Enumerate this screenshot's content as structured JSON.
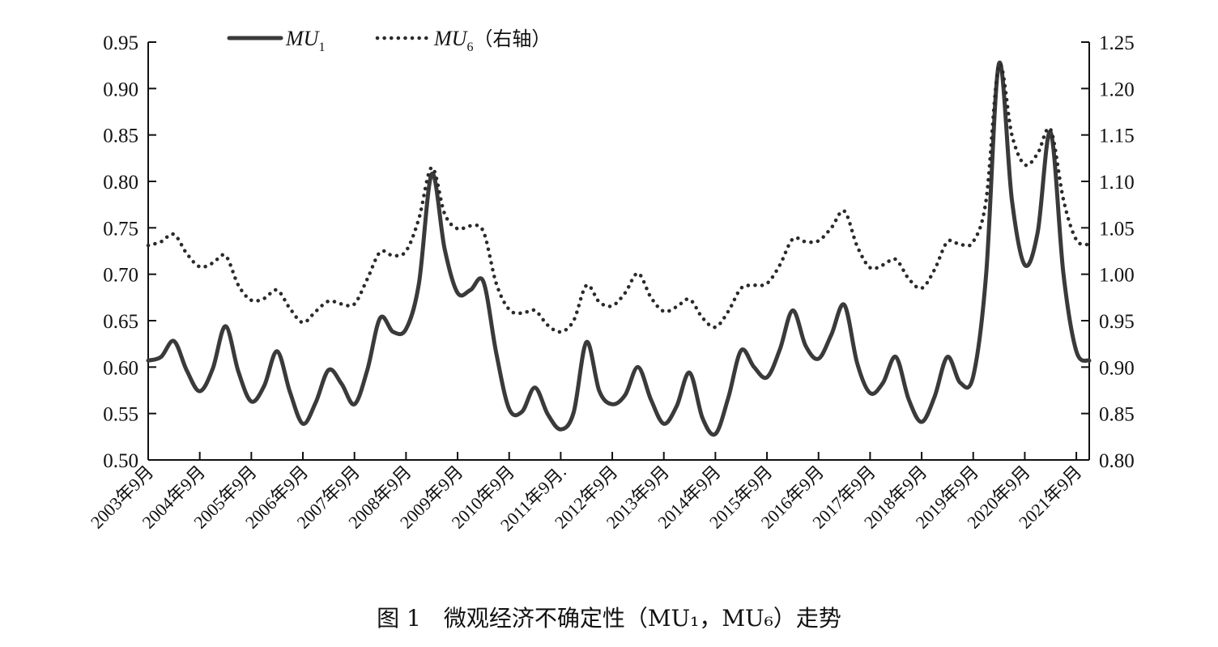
{
  "caption": "图 1　微观经济不确定性（MU₁，MU₆）走势",
  "chart_data": {
    "type": "line",
    "title": "",
    "xlabel": "",
    "ylabel": "",
    "grid": false,
    "legend_position": "top-left",
    "x_axis": {
      "type": "date",
      "range": [
        "2003-09",
        "2021-12"
      ],
      "tick_labels": [
        "2003年9月",
        "2004年9月",
        "2005年9月",
        "2006年9月",
        "2007年9月",
        "2008年9月",
        "2009年9月",
        "2010年9月",
        "2011年9月.",
        "2012年9月",
        "2013年9月",
        "2014年9月",
        "2015年9月",
        "2016年9月",
        "2017年9月",
        "2018年9月",
        "2019年9月",
        "2020年9月",
        "2021年9月"
      ]
    },
    "y_left": {
      "range": [
        0.5,
        0.95
      ],
      "ticks": [
        "0.50",
        "0.55",
        "0.60",
        "0.65",
        "0.70",
        "0.75",
        "0.80",
        "0.85",
        "0.90",
        "0.95"
      ]
    },
    "y_right": {
      "range": [
        0.8,
        1.25
      ],
      "ticks": [
        "0.80",
        "0.85",
        "0.90",
        "0.95",
        "1.00",
        "1.05",
        "1.10",
        "1.15",
        "1.20",
        "1.25"
      ]
    },
    "series": [
      {
        "name": "MU1",
        "legend_main": "MU",
        "legend_sub": "1",
        "legend_suffix": "",
        "axis": "left",
        "style": "solid",
        "color": "#3a3a3a",
        "points": [
          [
            "2003-09",
            0.607
          ],
          [
            "2003-12",
            0.611
          ],
          [
            "2004-03",
            0.628
          ],
          [
            "2004-06",
            0.596
          ],
          [
            "2004-09",
            0.574
          ],
          [
            "2004-12",
            0.598
          ],
          [
            "2005-03",
            0.644
          ],
          [
            "2005-06",
            0.595
          ],
          [
            "2005-09",
            0.563
          ],
          [
            "2005-12",
            0.58
          ],
          [
            "2006-03",
            0.617
          ],
          [
            "2006-06",
            0.573
          ],
          [
            "2006-09",
            0.539
          ],
          [
            "2006-12",
            0.562
          ],
          [
            "2007-03",
            0.597
          ],
          [
            "2007-06",
            0.582
          ],
          [
            "2007-09",
            0.56
          ],
          [
            "2007-12",
            0.597
          ],
          [
            "2008-03",
            0.653
          ],
          [
            "2008-06",
            0.638
          ],
          [
            "2008-09",
            0.641
          ],
          [
            "2008-12",
            0.69
          ],
          [
            "2009-03",
            0.808
          ],
          [
            "2009-06",
            0.727
          ],
          [
            "2009-09",
            0.68
          ],
          [
            "2009-12",
            0.683
          ],
          [
            "2010-03",
            0.692
          ],
          [
            "2010-06",
            0.615
          ],
          [
            "2010-09",
            0.555
          ],
          [
            "2010-12",
            0.552
          ],
          [
            "2011-03",
            0.578
          ],
          [
            "2011-06",
            0.549
          ],
          [
            "2011-09",
            0.533
          ],
          [
            "2011-12",
            0.551
          ],
          [
            "2012-03",
            0.627
          ],
          [
            "2012-06",
            0.574
          ],
          [
            "2012-09",
            0.56
          ],
          [
            "2012-12",
            0.57
          ],
          [
            "2013-03",
            0.6
          ],
          [
            "2013-06",
            0.565
          ],
          [
            "2013-09",
            0.539
          ],
          [
            "2013-12",
            0.558
          ],
          [
            "2014-03",
            0.594
          ],
          [
            "2014-06",
            0.545
          ],
          [
            "2014-09",
            0.528
          ],
          [
            "2014-12",
            0.567
          ],
          [
            "2015-03",
            0.618
          ],
          [
            "2015-06",
            0.6
          ],
          [
            "2015-09",
            0.589
          ],
          [
            "2015-12",
            0.619
          ],
          [
            "2016-03",
            0.661
          ],
          [
            "2016-06",
            0.623
          ],
          [
            "2016-09",
            0.609
          ],
          [
            "2016-12",
            0.635
          ],
          [
            "2017-03",
            0.667
          ],
          [
            "2017-06",
            0.604
          ],
          [
            "2017-09",
            0.572
          ],
          [
            "2017-12",
            0.583
          ],
          [
            "2018-03",
            0.611
          ],
          [
            "2018-06",
            0.565
          ],
          [
            "2018-09",
            0.541
          ],
          [
            "2018-12",
            0.568
          ],
          [
            "2019-03",
            0.611
          ],
          [
            "2019-06",
            0.583
          ],
          [
            "2019-09",
            0.59
          ],
          [
            "2019-12",
            0.7
          ],
          [
            "2020-03",
            0.927
          ],
          [
            "2020-06",
            0.78
          ],
          [
            "2020-09",
            0.71
          ],
          [
            "2020-12",
            0.745
          ],
          [
            "2021-03",
            0.853
          ],
          [
            "2021-06",
            0.7
          ],
          [
            "2021-09",
            0.617
          ],
          [
            "2021-12",
            0.607
          ]
        ]
      },
      {
        "name": "MU6（右轴）",
        "legend_main": "MU",
        "legend_sub": "6",
        "legend_suffix": "（右轴）",
        "axis": "right",
        "style": "dotted",
        "color": "#2a2a2a",
        "points": [
          [
            "2003-09",
            1.031
          ],
          [
            "2003-12",
            1.035
          ],
          [
            "2004-03",
            1.043
          ],
          [
            "2004-06",
            1.022
          ],
          [
            "2004-09",
            1.008
          ],
          [
            "2004-12",
            1.012
          ],
          [
            "2005-03",
            1.02
          ],
          [
            "2005-06",
            0.988
          ],
          [
            "2005-09",
            0.972
          ],
          [
            "2005-12",
            0.974
          ],
          [
            "2006-03",
            0.983
          ],
          [
            "2006-06",
            0.963
          ],
          [
            "2006-09",
            0.948
          ],
          [
            "2006-12",
            0.96
          ],
          [
            "2007-03",
            0.971
          ],
          [
            "2007-06",
            0.968
          ],
          [
            "2007-09",
            0.968
          ],
          [
            "2007-12",
            0.995
          ],
          [
            "2008-03",
            1.024
          ],
          [
            "2008-06",
            1.02
          ],
          [
            "2008-09",
            1.025
          ],
          [
            "2008-12",
            1.06
          ],
          [
            "2009-03",
            1.115
          ],
          [
            "2009-06",
            1.065
          ],
          [
            "2009-09",
            1.049
          ],
          [
            "2009-12",
            1.052
          ],
          [
            "2010-03",
            1.046
          ],
          [
            "2010-06",
            0.99
          ],
          [
            "2010-09",
            0.962
          ],
          [
            "2010-12",
            0.958
          ],
          [
            "2011-03",
            0.961
          ],
          [
            "2011-06",
            0.945
          ],
          [
            "2011-09",
            0.938
          ],
          [
            "2011-12",
            0.95
          ],
          [
            "2012-03",
            0.988
          ],
          [
            "2012-06",
            0.97
          ],
          [
            "2012-09",
            0.966
          ],
          [
            "2012-12",
            0.98
          ],
          [
            "2013-03",
            1.001
          ],
          [
            "2013-06",
            0.975
          ],
          [
            "2013-09",
            0.96
          ],
          [
            "2013-12",
            0.965
          ],
          [
            "2014-03",
            0.973
          ],
          [
            "2014-06",
            0.953
          ],
          [
            "2014-09",
            0.943
          ],
          [
            "2014-12",
            0.96
          ],
          [
            "2015-03",
            0.985
          ],
          [
            "2015-06",
            0.988
          ],
          [
            "2015-09",
            0.99
          ],
          [
            "2015-12",
            1.01
          ],
          [
            "2016-03",
            1.038
          ],
          [
            "2016-06",
            1.035
          ],
          [
            "2016-09",
            1.036
          ],
          [
            "2016-12",
            1.05
          ],
          [
            "2017-03",
            1.068
          ],
          [
            "2017-06",
            1.03
          ],
          [
            "2017-09",
            1.007
          ],
          [
            "2017-12",
            1.01
          ],
          [
            "2018-03",
            1.016
          ],
          [
            "2018-06",
            0.995
          ],
          [
            "2018-09",
            0.985
          ],
          [
            "2018-12",
            1.005
          ],
          [
            "2019-03",
            1.035
          ],
          [
            "2019-06",
            1.032
          ],
          [
            "2019-09",
            1.035
          ],
          [
            "2019-12",
            1.08
          ],
          [
            "2020-03",
            1.225
          ],
          [
            "2020-06",
            1.15
          ],
          [
            "2020-09",
            1.118
          ],
          [
            "2020-12",
            1.13
          ],
          [
            "2021-03",
            1.156
          ],
          [
            "2021-06",
            1.08
          ],
          [
            "2021-09",
            1.037
          ],
          [
            "2021-12",
            1.032
          ]
        ]
      }
    ]
  }
}
